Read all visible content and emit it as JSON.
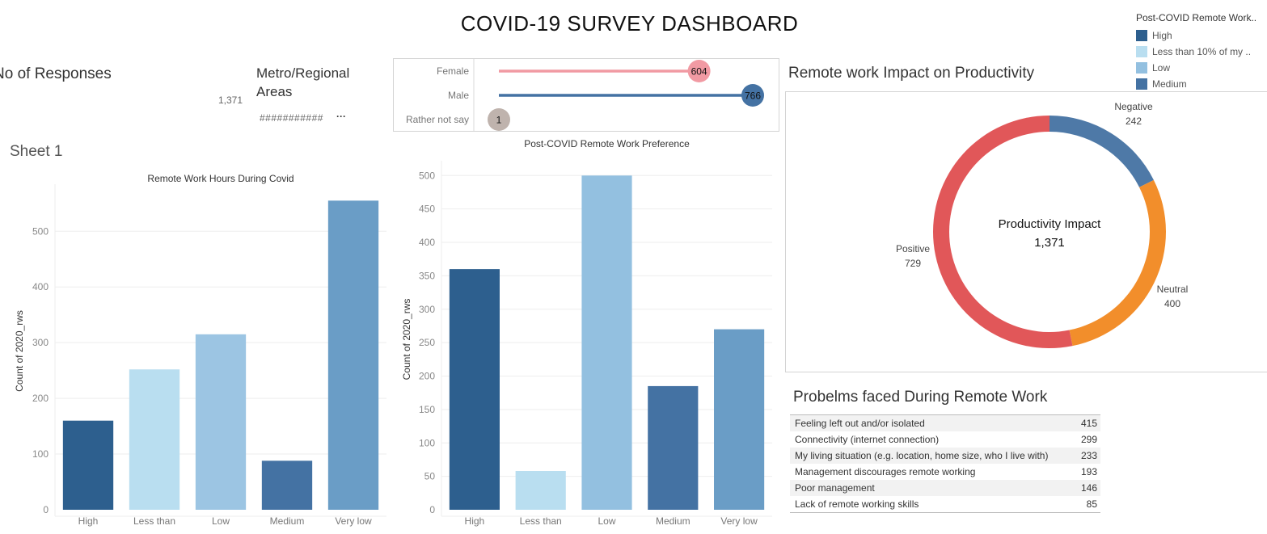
{
  "title": "COVID-19 SURVEY DASHBOARD",
  "kpi": {
    "responses_label": "No of Responses",
    "responses_value": "1,371",
    "metro_label": "Metro/Regional Areas",
    "metro_value": "###########",
    "metro_more": "···"
  },
  "sheet_label": "Sheet 1",
  "legend": {
    "title": "Post-COVID Remote Work..",
    "items": [
      {
        "label": "High",
        "color": "#2d5f8e"
      },
      {
        "label": "Less than 10% of my ..",
        "color": "#b9def0"
      },
      {
        "label": "Low",
        "color": "#93c0e0"
      },
      {
        "label": "Medium",
        "color": "#4472a3"
      }
    ]
  },
  "gender": {
    "rows": [
      {
        "label": "Female",
        "value": 604,
        "color": "#f19aa3"
      },
      {
        "label": "Male",
        "value": 766,
        "color": "#4472a3"
      },
      {
        "label": "Rather not say",
        "value": 1,
        "color": "#bfb3ad"
      }
    ],
    "max": 766
  },
  "productivity": {
    "title": "Remote work Impact on Productivity",
    "center_label": "Productivity Impact",
    "center_value": "1,371"
  },
  "problems": {
    "title": "Probelms faced During Remote Work",
    "rows": [
      {
        "label": "Feeling left out and/or isolated",
        "value": "415"
      },
      {
        "label": "Connectivity (internet connection)",
        "value": "299"
      },
      {
        "label": "My living situation (e.g. location, home size, who I live with)",
        "value": "233"
      },
      {
        "label": "Management discourages remote working",
        "value": "193"
      },
      {
        "label": "Poor management",
        "value": "146"
      },
      {
        "label": "Lack of remote working skills",
        "value": "85"
      }
    ]
  },
  "chart_data": [
    {
      "type": "bar",
      "title": "Remote Work Hours During Covid",
      "ylabel": "Count of 2020_rws",
      "xlabel": "",
      "categories": [
        "High",
        "Less than",
        "Low",
        "Medium",
        "Very low"
      ],
      "values": [
        160,
        252,
        315,
        88,
        555
      ],
      "colors": [
        "#2d5f8e",
        "#b9def0",
        "#9cc5e3",
        "#4472a3",
        "#6a9dc6"
      ],
      "ylim": [
        0,
        570
      ],
      "yticks": [
        0,
        100,
        200,
        300,
        400,
        500
      ],
      "grid": true
    },
    {
      "type": "bar",
      "title": "Post-COVID Remote Work Preference",
      "ylabel": "Count of 2020_rws",
      "xlabel": "",
      "categories": [
        "High",
        "Less than",
        "Low",
        "Medium",
        "Very low"
      ],
      "values": [
        360,
        58,
        500,
        185,
        270
      ],
      "colors": [
        "#2d5f8e",
        "#b9def0",
        "#93c0e0",
        "#4472a3",
        "#6a9dc6"
      ],
      "ylim": [
        0,
        510
      ],
      "yticks": [
        0,
        50,
        100,
        150,
        200,
        250,
        300,
        350,
        400,
        450,
        500
      ],
      "grid": true
    },
    {
      "type": "pie",
      "title": "Remote work Impact on Productivity",
      "slices": [
        {
          "label": "Negative",
          "value": 242,
          "color": "#4e79a7"
        },
        {
          "label": "Neutral",
          "value": 400,
          "color": "#f28e2b"
        },
        {
          "label": "Positive",
          "value": 729,
          "color": "#e15759"
        }
      ]
    }
  ]
}
